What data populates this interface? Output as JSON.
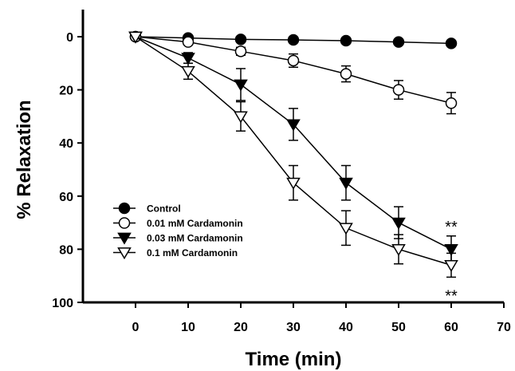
{
  "chart_data": {
    "type": "line",
    "xlabel": "Time (min)",
    "ylabel": "% Relaxation",
    "xlim": [
      -10,
      70
    ],
    "ylim": [
      0,
      100
    ],
    "y_inverted": true,
    "x_ticks": [
      0,
      10,
      20,
      30,
      40,
      50,
      60,
      70
    ],
    "y_ticks": [
      0,
      20,
      40,
      60,
      80,
      100
    ],
    "grid": false,
    "legend_position": "bottom-left",
    "x": [
      0,
      10,
      20,
      30,
      40,
      50,
      60
    ],
    "series": [
      {
        "name": "Control",
        "marker": "filled-circle",
        "values": [
          0,
          0.5,
          1,
          1.2,
          1.5,
          2,
          2.5
        ],
        "errors": [
          0,
          0.3,
          0.4,
          0.5,
          0.6,
          0.7,
          0.8
        ]
      },
      {
        "name": "0.01 mM Cardamonin",
        "marker": "open-circle",
        "values": [
          0,
          2,
          5.5,
          9,
          14,
          20,
          25
        ],
        "errors": [
          0,
          1,
          1.5,
          2.5,
          3,
          3.5,
          4
        ]
      },
      {
        "name": "0.03 mM Cardamonin",
        "marker": "filled-triangle-down",
        "values": [
          0,
          8,
          18,
          33,
          55,
          70,
          80
        ],
        "errors": [
          0,
          2,
          6,
          6,
          6.5,
          6,
          5
        ]
      },
      {
        "name": "0.1 mM Cardamonin",
        "marker": "open-triangle-down",
        "values": [
          0,
          13,
          30,
          55,
          72,
          80,
          86
        ],
        "errors": [
          0,
          3,
          5.5,
          6.5,
          6.5,
          5.5,
          4.5
        ]
      }
    ],
    "annotations": [
      {
        "text": "**",
        "x": 60,
        "y": 70
      },
      {
        "text": "**",
        "x": 60,
        "y": 96
      }
    ]
  }
}
